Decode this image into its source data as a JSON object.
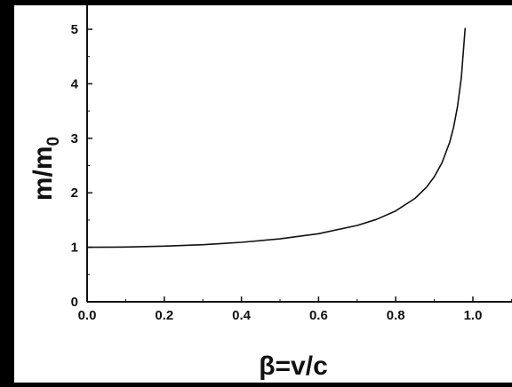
{
  "chart_data": {
    "type": "line",
    "title": "",
    "xlabel": "β=v/c",
    "ylabel": "m/m",
    "ylabel_subscript": "0",
    "xlim": [
      0.0,
      1.1
    ],
    "ylim": [
      0,
      5.3
    ],
    "x_ticks": [
      "0.0",
      "0.2",
      "0.4",
      "0.6",
      "0.8",
      "1.0"
    ],
    "y_ticks": [
      "0",
      "1",
      "2",
      "3",
      "4",
      "5"
    ],
    "grid": false,
    "legend": "none",
    "series": [
      {
        "x": [
          0.0,
          0.1,
          0.2,
          0.3,
          0.4,
          0.5,
          0.6,
          0.7,
          0.75,
          0.8,
          0.85,
          0.88,
          0.9,
          0.92,
          0.94,
          0.95,
          0.96,
          0.97,
          0.98
        ],
        "y": [
          1.0,
          1.005,
          1.021,
          1.048,
          1.091,
          1.155,
          1.25,
          1.4,
          1.512,
          1.667,
          1.898,
          2.105,
          2.294,
          2.552,
          2.931,
          3.203,
          3.571,
          4.113,
          5.025
        ]
      }
    ],
    "colors": {
      "background": "#000000",
      "plot_area": "#ffffff",
      "line": "#111111"
    }
  }
}
